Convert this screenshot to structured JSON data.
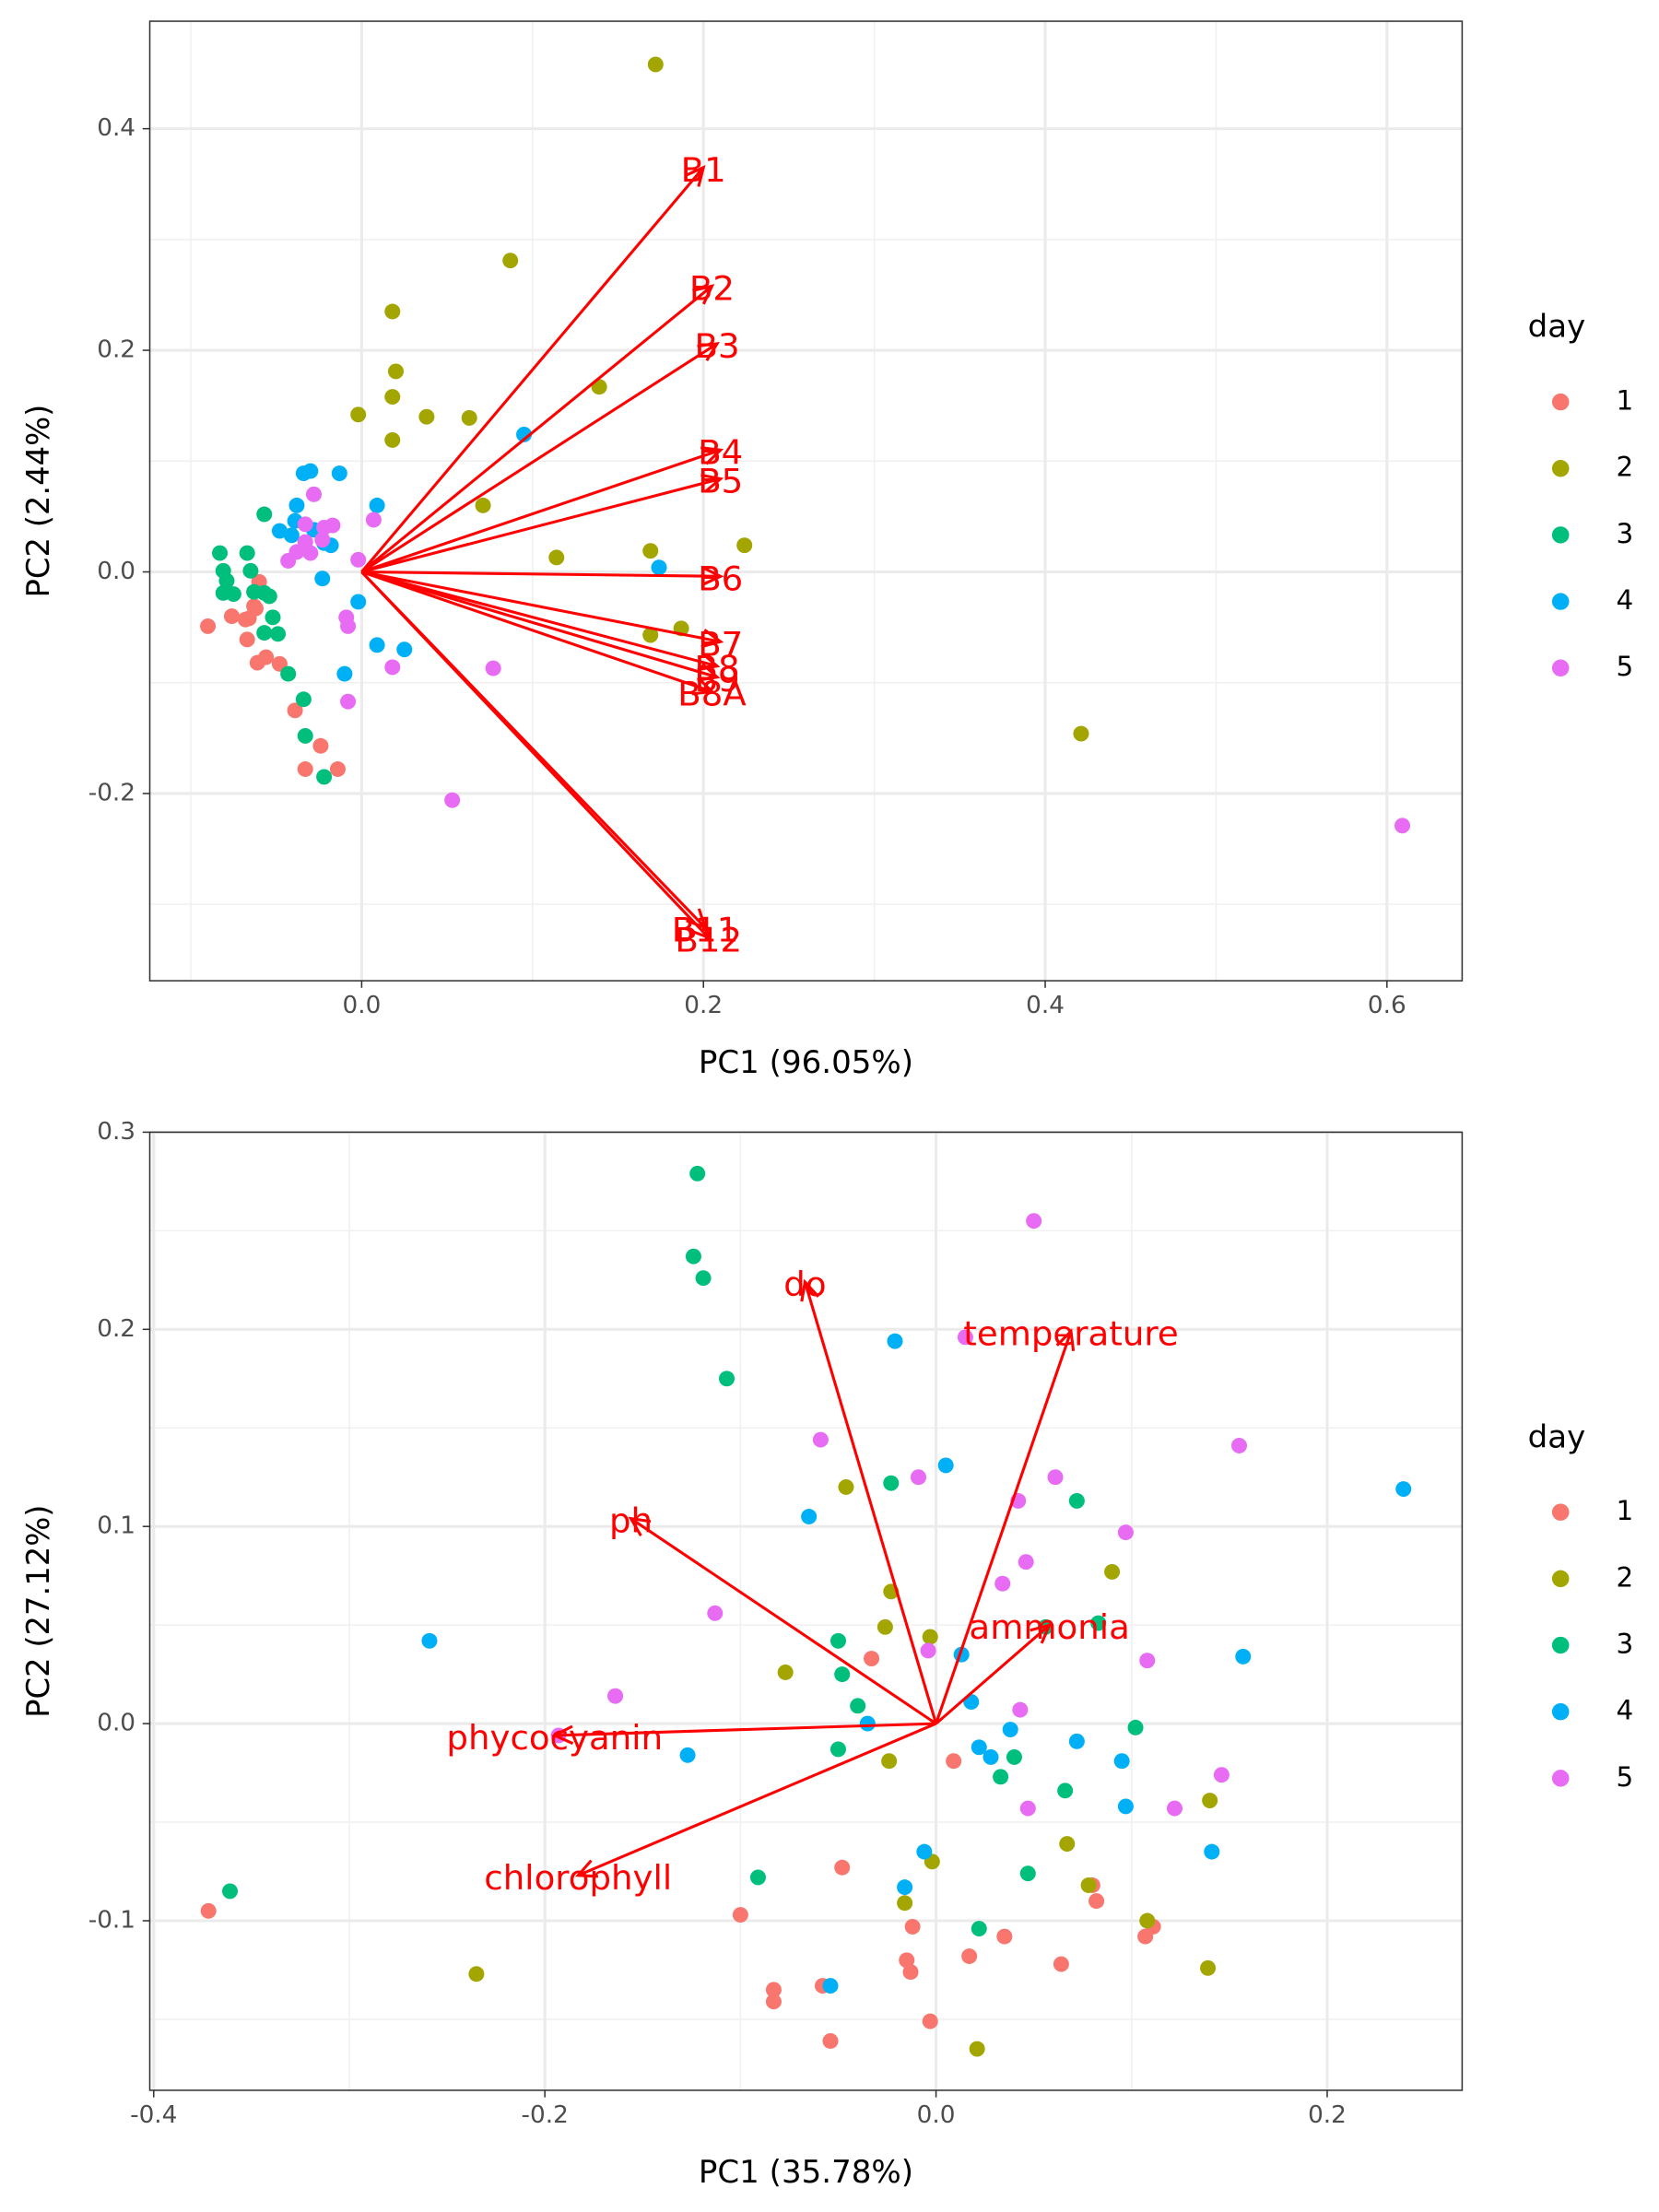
{
  "chart_data": [
    {
      "type": "scatter",
      "xlabel": "PC1 (96.05%)",
      "ylabel": "PC2 (2.44%)",
      "legend_title": "day",
      "grid": true,
      "arrow_color": "#ff0000",
      "xlim": [
        -0.124,
        0.644
      ],
      "ylim": [
        -0.369,
        0.497
      ],
      "xticks": [
        {
          "value": 0,
          "label": "0.0"
        },
        0.2,
        0.4,
        0.6
      ],
      "yticks": [
        -0.2,
        {
          "value": 0,
          "label": "0.0"
        },
        0.2,
        0.4
      ],
      "series": [
        {
          "name": "1",
          "color": "#F8766D",
          "x": [
            -0.09,
            -0.076,
            -0.068,
            -0.066,
            -0.06,
            -0.062,
            -0.067,
            -0.061,
            -0.056,
            -0.048,
            -0.039,
            -0.024,
            -0.033,
            -0.014,
            -0.063
          ],
          "y": [
            -0.049,
            -0.04,
            -0.043,
            -0.042,
            -0.009,
            -0.033,
            -0.061,
            -0.082,
            -0.077,
            -0.083,
            -0.125,
            -0.157,
            -0.178,
            -0.178,
            -0.031
          ]
        },
        {
          "name": "2",
          "color": "#A3A500",
          "x": [
            0.172,
            0.087,
            0.018,
            0.02,
            -0.002,
            0.018,
            0.038,
            0.063,
            0.018,
            0.139,
            0.071,
            0.114,
            0.169,
            0.224,
            0.169,
            0.187,
            0.421
          ],
          "y": [
            0.458,
            0.281,
            0.235,
            0.181,
            0.142,
            0.158,
            0.14,
            0.139,
            0.119,
            0.167,
            0.06,
            0.013,
            0.019,
            0.024,
            -0.057,
            -0.051,
            -0.146
          ]
        },
        {
          "name": "3",
          "color": "#00BF7D",
          "x": [
            -0.083,
            -0.081,
            -0.079,
            -0.081,
            -0.075,
            -0.067,
            -0.065,
            -0.057,
            -0.063,
            -0.054,
            -0.052,
            -0.057,
            -0.049,
            -0.043,
            -0.034,
            -0.033,
            -0.022,
            -0.057
          ],
          "y": [
            0.017,
            0.001,
            -0.008,
            -0.019,
            -0.02,
            0.017,
            0.001,
            0.052,
            -0.018,
            -0.022,
            -0.041,
            -0.019,
            -0.056,
            -0.092,
            -0.115,
            -0.148,
            -0.185,
            -0.055
          ]
        },
        {
          "name": "4",
          "color": "#00B0F6",
          "x": [
            -0.034,
            -0.03,
            -0.013,
            -0.038,
            0.009,
            -0.048,
            -0.039,
            -0.041,
            -0.028,
            -0.022,
            -0.018,
            0.095,
            0.174,
            -0.002,
            -0.023,
            0.009,
            0.025,
            -0.01
          ],
          "y": [
            0.089,
            0.091,
            0.089,
            0.06,
            0.06,
            0.037,
            0.046,
            0.033,
            0.038,
            0.026,
            0.024,
            0.124,
            0.004,
            -0.027,
            -0.006,
            -0.066,
            -0.07,
            -0.092
          ]
        },
        {
          "name": "5",
          "color": "#E76BF3",
          "x": [
            -0.028,
            -0.033,
            -0.022,
            -0.017,
            -0.033,
            -0.03,
            -0.038,
            -0.043,
            -0.002,
            0.007,
            -0.009,
            -0.008,
            -0.008,
            0.018,
            0.077,
            0.053,
            0.609,
            -0.023
          ],
          "y": [
            0.07,
            0.043,
            0.04,
            0.042,
            0.027,
            0.017,
            0.018,
            0.01,
            0.011,
            0.047,
            -0.041,
            -0.049,
            -0.117,
            -0.086,
            -0.087,
            -0.206,
            -0.229,
            0.029
          ]
        }
      ],
      "arrows": [
        {
          "label": "B1",
          "x": 0.2,
          "y": 0.365
        },
        {
          "label": "B2",
          "x": 0.205,
          "y": 0.258
        },
        {
          "label": "B3",
          "x": 0.208,
          "y": 0.206
        },
        {
          "label": "B4",
          "x": 0.21,
          "y": 0.11
        },
        {
          "label": "B5",
          "x": 0.21,
          "y": 0.084
        },
        {
          "label": "B6",
          "x": 0.21,
          "y": -0.004
        },
        {
          "label": "B7",
          "x": 0.21,
          "y": -0.063
        },
        {
          "label": "B8",
          "x": 0.208,
          "y": -0.085
        },
        {
          "label": "B9",
          "x": 0.208,
          "y": -0.095
        },
        {
          "label": "B8A",
          "x": 0.205,
          "y": -0.108
        },
        {
          "label": "B11",
          "x": 0.201,
          "y": -0.321
        },
        {
          "label": "B12",
          "x": 0.203,
          "y": -0.33
        }
      ]
    },
    {
      "type": "scatter",
      "xlabel": "PC1 (35.78%)",
      "ylabel": "PC2 (27.12%)",
      "legend_title": "day",
      "grid": true,
      "arrow_color": "#ff0000",
      "xlim": [
        -0.402,
        0.269
      ],
      "ylim": [
        -0.186,
        0.3
      ],
      "xticks": [
        -0.4,
        -0.2,
        {
          "value": 0,
          "label": "0.0"
        },
        0.2
      ],
      "yticks": [
        -0.1,
        {
          "value": 0,
          "label": "0.0"
        },
        0.1,
        0.2,
        0.3
      ],
      "series": [
        {
          "name": "1",
          "color": "#F8766D",
          "x": [
            -0.372,
            -0.033,
            -0.048,
            0.009,
            -0.1,
            -0.083,
            -0.083,
            -0.054,
            -0.058,
            -0.012,
            -0.015,
            -0.013,
            -0.003,
            0.017,
            0.035,
            0.064,
            0.08,
            0.082,
            0.107,
            0.111
          ],
          "y": [
            -0.095,
            0.033,
            -0.073,
            -0.019,
            -0.097,
            -0.135,
            -0.141,
            -0.161,
            -0.133,
            -0.103,
            -0.12,
            -0.126,
            -0.151,
            -0.118,
            -0.108,
            -0.122,
            -0.082,
            -0.09,
            -0.108,
            -0.103
          ]
        },
        {
          "name": "2",
          "color": "#A3A500",
          "x": [
            -0.235,
            -0.077,
            -0.046,
            -0.023,
            -0.026,
            -0.024,
            -0.003,
            -0.002,
            -0.016,
            0.021,
            0.09,
            0.067,
            0.078,
            0.108,
            0.14,
            0.139
          ],
          "y": [
            -0.127,
            0.026,
            0.12,
            0.067,
            0.049,
            -0.019,
            0.044,
            -0.07,
            -0.091,
            -0.165,
            0.077,
            -0.061,
            -0.082,
            -0.1,
            -0.039,
            -0.124
          ]
        },
        {
          "name": "3",
          "color": "#00BF7D",
          "x": [
            -0.361,
            -0.122,
            -0.124,
            -0.119,
            -0.107,
            -0.023,
            -0.05,
            -0.048,
            -0.04,
            -0.05,
            -0.091,
            0.022,
            0.033,
            0.04,
            0.072,
            0.056,
            0.083,
            0.102,
            0.066,
            0.047
          ],
          "y": [
            -0.085,
            0.279,
            0.237,
            0.226,
            0.175,
            0.122,
            0.042,
            0.025,
            0.009,
            -0.013,
            -0.078,
            -0.104,
            -0.027,
            -0.017,
            0.113,
            0.049,
            0.051,
            -0.002,
            -0.034,
            -0.076
          ]
        },
        {
          "name": "4",
          "color": "#00B0F6",
          "x": [
            -0.259,
            -0.127,
            -0.065,
            -0.021,
            0.005,
            -0.035,
            0.013,
            0.018,
            0.022,
            0.028,
            0.038,
            0.072,
            0.095,
            0.097,
            0.141,
            0.157,
            0.239,
            -0.006,
            -0.016,
            -0.054
          ],
          "y": [
            0.042,
            -0.016,
            0.105,
            0.194,
            0.131,
            0.0,
            0.035,
            0.011,
            -0.012,
            -0.017,
            -0.003,
            -0.009,
            -0.019,
            -0.042,
            -0.065,
            0.034,
            0.119,
            -0.065,
            -0.083,
            -0.133
          ]
        },
        {
          "name": "5",
          "color": "#E76BF3",
          "x": [
            -0.164,
            -0.193,
            -0.113,
            -0.059,
            -0.009,
            -0.004,
            0.015,
            0.05,
            0.042,
            0.061,
            0.046,
            0.034,
            0.043,
            0.047,
            0.097,
            0.108,
            0.122,
            0.146,
            0.155
          ],
          "y": [
            0.014,
            -0.006,
            0.056,
            0.144,
            0.125,
            0.037,
            0.196,
            0.255,
            0.113,
            0.125,
            0.082,
            0.071,
            0.007,
            -0.043,
            0.097,
            0.032,
            -0.043,
            -0.026,
            0.141
          ]
        }
      ],
      "arrows": [
        {
          "label": "do",
          "x": -0.067,
          "y": 0.224
        },
        {
          "label": "temperature",
          "x": 0.069,
          "y": 0.199
        },
        {
          "label": "ph",
          "x": -0.156,
          "y": 0.104
        },
        {
          "label": "ammonia",
          "x": 0.058,
          "y": 0.05
        },
        {
          "label": "phycocyanin",
          "x": -0.195,
          "y": -0.006
        },
        {
          "label": "chlorophyll",
          "x": -0.183,
          "y": -0.077
        }
      ]
    }
  ]
}
